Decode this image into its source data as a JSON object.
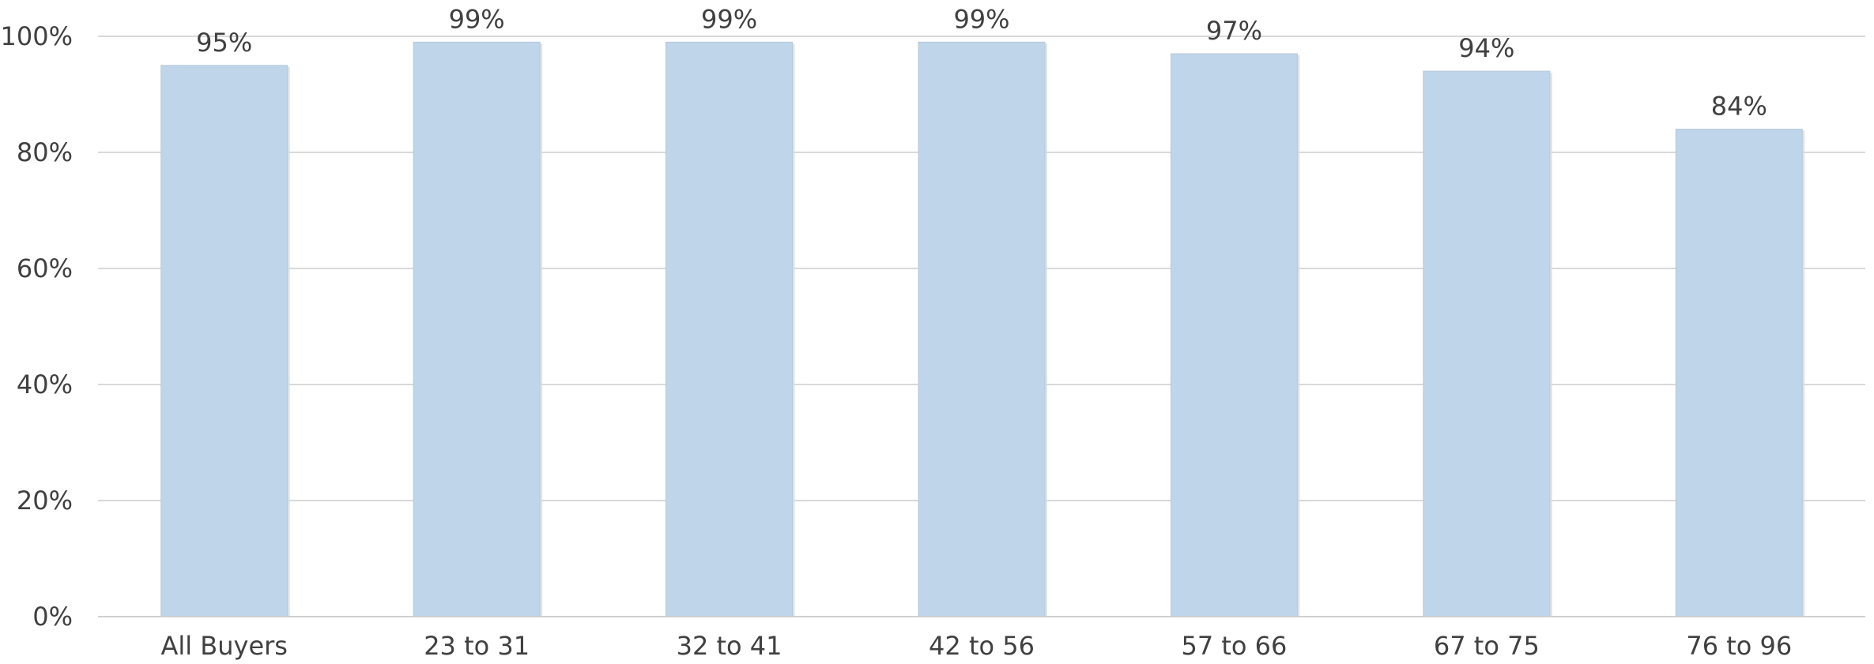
{
  "chart_data": {
    "type": "bar",
    "categories": [
      "All Buyers",
      "23 to 31",
      "32 to 41",
      "42 to 56",
      "57 to 66",
      "67 to 75",
      "76 to 96"
    ],
    "values": [
      95,
      99,
      99,
      99,
      97,
      94,
      84
    ],
    "data_labels": [
      "95%",
      "99%",
      "99%",
      "99%",
      "97%",
      "94%",
      "84%"
    ],
    "yticks": [
      0,
      20,
      40,
      60,
      80,
      100
    ],
    "ytick_labels": [
      "0%",
      "20%",
      "40%",
      "60%",
      "80%",
      "100%"
    ],
    "ylim": [
      0,
      100
    ],
    "grid": true,
    "legend": "none",
    "bar_color": "#bed5ea"
  }
}
